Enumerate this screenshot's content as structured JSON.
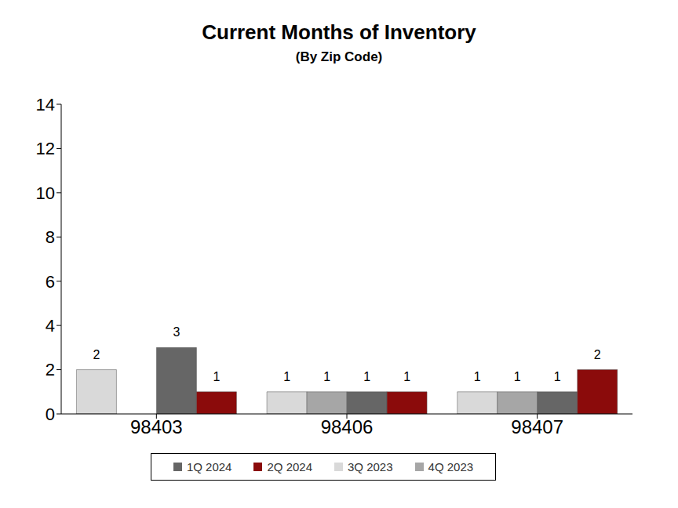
{
  "chart_data": {
    "type": "bar",
    "title": "Current Months of Inventory",
    "subtitle": "(By Zip Code)",
    "categories": [
      "98403",
      "98406",
      "98407"
    ],
    "series": [
      {
        "name": "3Q 2023",
        "color": "#d9d9d9",
        "values": [
          2,
          1,
          1
        ]
      },
      {
        "name": "4Q 2023",
        "color": "#a6a6a6",
        "values": [
          null,
          1,
          1
        ]
      },
      {
        "name": "1Q 2024",
        "color": "#666666",
        "values": [
          3,
          1,
          1
        ]
      },
      {
        "name": "2Q 2024",
        "color": "#8b0b0b",
        "values": [
          1,
          1,
          2
        ]
      }
    ],
    "ylim": [
      0,
      14
    ],
    "yticks": [
      0,
      2,
      4,
      6,
      8,
      10,
      12,
      14
    ],
    "grid": false,
    "legend": "bottom",
    "data_labels": true
  }
}
